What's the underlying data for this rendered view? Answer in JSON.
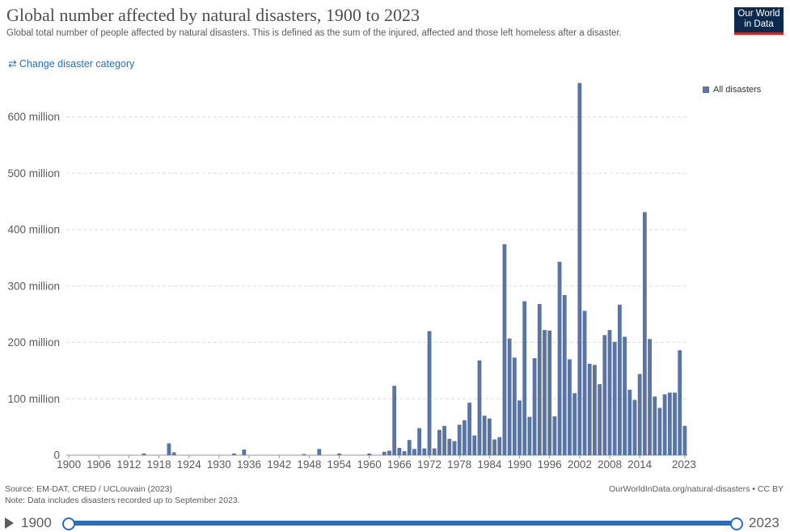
{
  "header": {
    "title": "Global number affected by natural disasters, 1900 to 2023",
    "subtitle": "Global total number of people affected by natural disasters. This is defined as the sum of the injured, affected and those left homeless after a disaster.",
    "logo_line1": "Our World",
    "logo_line2": "in Data",
    "change_label": "Change disaster category",
    "change_icon": "swap-arrows-icon"
  },
  "legend": {
    "label": "All disasters"
  },
  "footer": {
    "source": "Source: EM-DAT, CRED / UCLouvain (2023)",
    "note": "Note: Data includes disasters recorded up to September 2023.",
    "site": "OurWorldInData.org/natural-disasters • CC BY"
  },
  "timeline": {
    "start": "1900",
    "end": "2023"
  },
  "colors": {
    "bar": "#5a74a3",
    "accent": "#2a6ebb",
    "logo_bg": "#0c2a4e",
    "logo_bar": "#ce261e"
  },
  "chart_data": {
    "type": "bar",
    "title": "Global number affected by natural disasters, 1900 to 2023",
    "xlabel": "",
    "ylabel": "",
    "ylim": [
      0,
      660
    ],
    "y_unit": "million",
    "ytick_values": [
      0,
      100,
      200,
      300,
      400,
      500,
      600
    ],
    "ytick_labels": [
      "0",
      "100 million",
      "200 million",
      "300 million",
      "400 million",
      "500 million",
      "600 million"
    ],
    "xtick_labels": [
      "1900",
      "1906",
      "1912",
      "1918",
      "1924",
      "1930",
      "1936",
      "1942",
      "1948",
      "1954",
      "1960",
      "1966",
      "1972",
      "1978",
      "1984",
      "1990",
      "1996",
      "2002",
      "2008",
      "2014",
      "2023"
    ],
    "series_name": "All disasters",
    "categories": [
      "1900",
      "1901",
      "1902",
      "1903",
      "1904",
      "1905",
      "1906",
      "1907",
      "1908",
      "1909",
      "1910",
      "1911",
      "1912",
      "1913",
      "1914",
      "1915",
      "1916",
      "1917",
      "1918",
      "1919",
      "1920",
      "1921",
      "1922",
      "1923",
      "1924",
      "1925",
      "1926",
      "1927",
      "1928",
      "1929",
      "1930",
      "1931",
      "1932",
      "1933",
      "1934",
      "1935",
      "1936",
      "1937",
      "1938",
      "1939",
      "1940",
      "1941",
      "1942",
      "1943",
      "1944",
      "1945",
      "1946",
      "1947",
      "1948",
      "1949",
      "1950",
      "1951",
      "1952",
      "1953",
      "1954",
      "1955",
      "1956",
      "1957",
      "1958",
      "1959",
      "1960",
      "1961",
      "1962",
      "1963",
      "1964",
      "1965",
      "1966",
      "1967",
      "1968",
      "1969",
      "1970",
      "1971",
      "1972",
      "1973",
      "1974",
      "1975",
      "1976",
      "1977",
      "1978",
      "1979",
      "1980",
      "1981",
      "1982",
      "1983",
      "1984",
      "1985",
      "1986",
      "1987",
      "1988",
      "1989",
      "1990",
      "1991",
      "1992",
      "1993",
      "1994",
      "1995",
      "1996",
      "1997",
      "1998",
      "1999",
      "2000",
      "2001",
      "2002",
      "2003",
      "2004",
      "2005",
      "2006",
      "2007",
      "2008",
      "2009",
      "2010",
      "2011",
      "2012",
      "2013",
      "2014",
      "2015",
      "2016",
      "2017",
      "2018",
      "2019",
      "2020",
      "2021",
      "2022",
      "2023"
    ],
    "values": [
      0,
      0,
      0,
      0,
      0,
      0,
      0,
      0,
      0,
      0,
      0,
      0,
      0,
      0,
      0,
      3,
      0,
      0,
      0,
      0,
      21,
      5,
      0,
      0,
      0,
      0,
      0,
      0,
      0,
      0,
      0,
      0,
      0,
      3,
      0,
      10,
      0,
      0,
      0,
      0,
      0,
      0,
      0,
      0,
      0,
      0,
      0,
      2,
      0,
      0,
      11,
      0,
      0,
      0,
      3,
      0,
      0,
      0,
      0,
      0,
      3,
      0,
      0,
      6,
      8,
      123,
      13,
      7,
      27,
      11,
      48,
      12,
      220,
      12,
      45,
      52,
      29,
      25,
      54,
      62,
      93,
      35,
      168,
      70,
      65,
      28,
      32,
      374,
      207,
      173,
      97,
      273,
      68,
      172,
      268,
      222,
      221,
      69,
      343,
      284,
      170,
      110,
      660,
      256,
      162,
      160,
      126,
      213,
      222,
      201,
      267,
      210,
      116,
      98,
      144,
      431,
      206,
      104,
      84,
      108,
      111,
      111,
      186,
      52
    ]
  }
}
